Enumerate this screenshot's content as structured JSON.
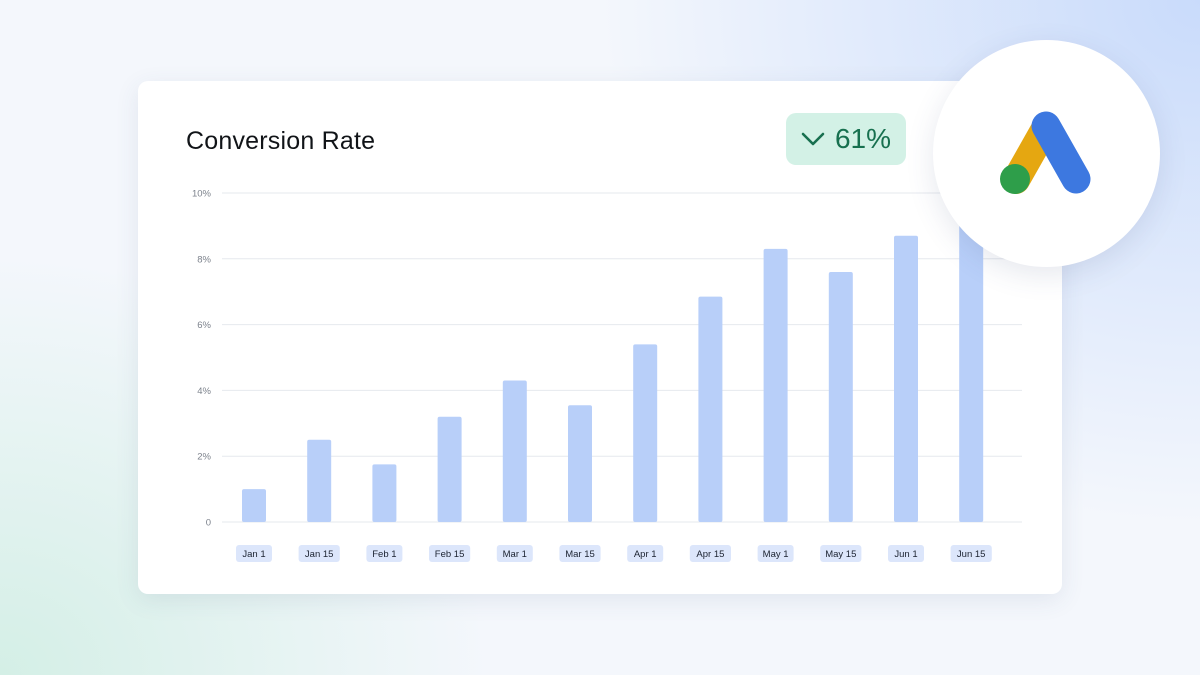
{
  "badge": {
    "direction_icon": "chevron-down-icon",
    "value": "61%"
  },
  "brand_logo": {
    "icon": "google-ads-logo-icon",
    "colors": {
      "yellow": "#e5a711",
      "blue": "#3d78e0",
      "green": "#2e9e4a"
    }
  },
  "colors": {
    "bar": "#b8cff9",
    "tick_pill": "#dce6fb",
    "badge_bg": "#d3f1e6",
    "badge_text": "#17704f",
    "grid": "#e6e9ee"
  },
  "chart_data": {
    "type": "bar",
    "title": "Conversion Rate",
    "xlabel": "",
    "ylabel": "",
    "categories": [
      "Jan 1",
      "Jan 15",
      "Feb 1",
      "Feb 15",
      "Mar 1",
      "Mar 15",
      "Apr 1",
      "Apr 15",
      "May 1",
      "May 15",
      "Jun 1",
      "Jun 15"
    ],
    "values": [
      1.0,
      2.5,
      1.75,
      3.2,
      4.3,
      3.55,
      5.4,
      6.85,
      8.3,
      7.6,
      8.7,
      9.1
    ],
    "ylim": [
      0,
      10
    ],
    "y_ticks": [
      0,
      2,
      4,
      6,
      8,
      10
    ],
    "y_tick_labels": [
      "0",
      "2%",
      "4%",
      "6%",
      "8%",
      "10%"
    ],
    "grid": true,
    "legend": "none"
  }
}
